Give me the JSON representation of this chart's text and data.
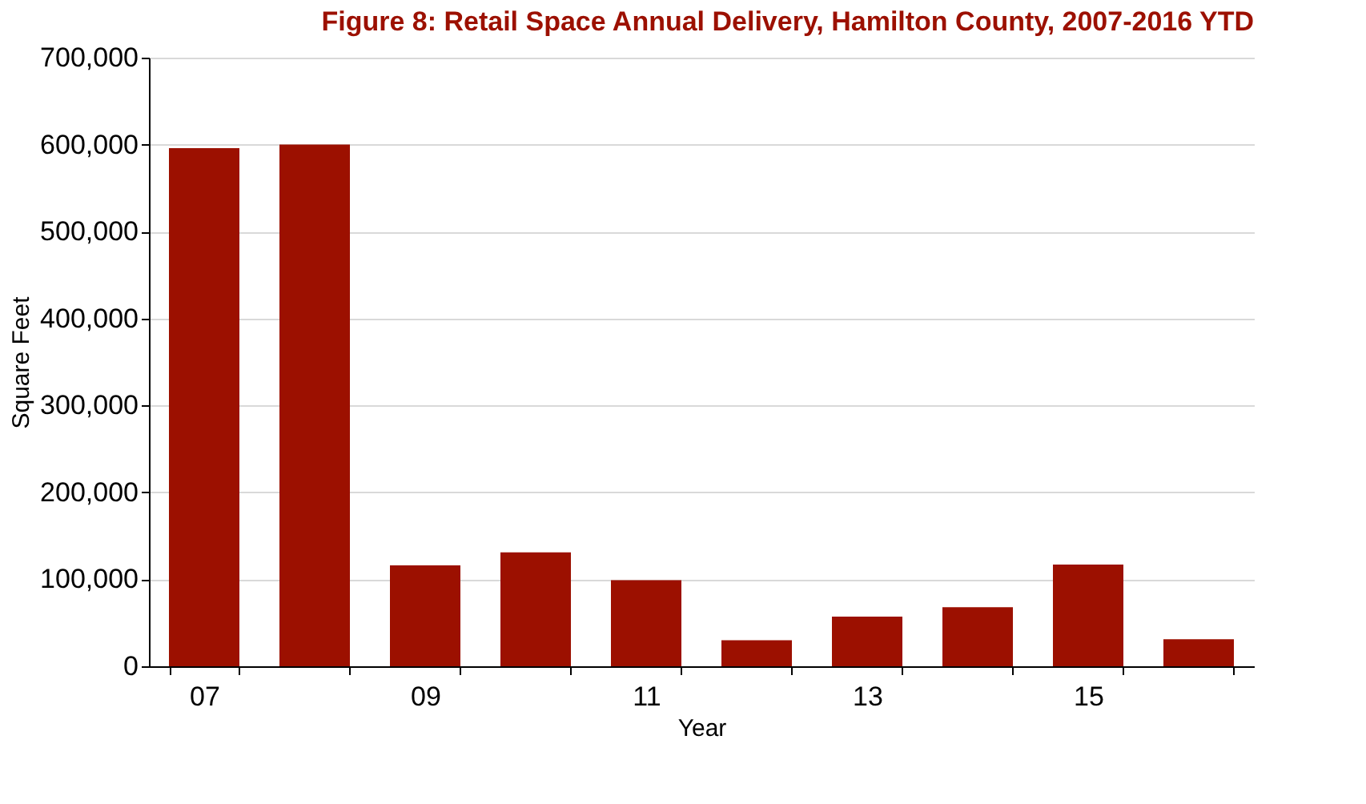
{
  "chart_data": {
    "type": "bar",
    "title": "Figure 8: Retail Space Annual Delivery, Hamilton County, 2007-2016 YTD",
    "xlabel": "Year",
    "ylabel": "Square Feet",
    "categories": [
      "07",
      null,
      "09",
      null,
      "11",
      null,
      "13",
      null,
      "15",
      null
    ],
    "values": [
      596000,
      600000,
      116000,
      131000,
      99000,
      30000,
      57000,
      68000,
      117000,
      31000
    ],
    "color": "#9c1000",
    "ylim": [
      0,
      700000
    ],
    "yticks": [
      0,
      {
        "value": 100000,
        "label": "100,000"
      },
      {
        "value": 200000,
        "label": "200,000"
      },
      {
        "value": 300000,
        "label": "300,000"
      },
      {
        "value": 400000,
        "label": "400,000"
      },
      {
        "value": 500000,
        "label": "500,000"
      },
      {
        "value": 600000,
        "label": "600,000"
      },
      {
        "value": 700000,
        "label": "700,000"
      }
    ],
    "grid": "y"
  }
}
